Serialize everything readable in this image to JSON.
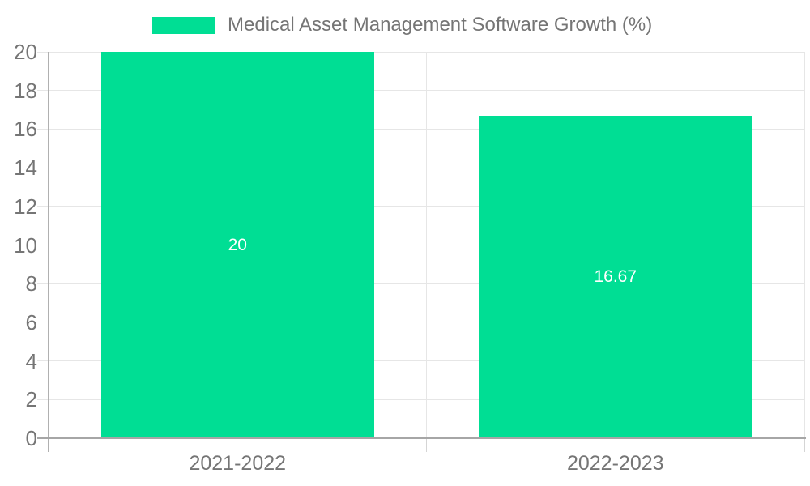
{
  "legend": {
    "label": "Medical Asset Management Software Growth (%)"
  },
  "colors": {
    "bar": "#00DE94",
    "axis_label": "#757575",
    "data_label": "#FFFFFF",
    "gridline": "#E6E6E6",
    "x_axis_line": "#A6A6A6",
    "y_axis_line": "#B0B0B0",
    "background": "#FFFFFF"
  },
  "chart_data": {
    "type": "bar",
    "title": "Medical Asset Management Software Growth (%)",
    "categories": [
      "2021-2022",
      "2022-2023"
    ],
    "series": [
      {
        "name": "Medical Asset Management Software Growth (%)",
        "values": [
          20,
          16.67
        ],
        "data_labels": [
          "20",
          "16.67"
        ],
        "color": "#00DE94"
      }
    ],
    "xlabel": "",
    "ylabel": "",
    "ylim": [
      0,
      20
    ],
    "yticks": [
      0,
      2,
      4,
      6,
      8,
      10,
      12,
      14,
      16,
      18,
      20
    ],
    "grid": true,
    "legend_position": "top",
    "data_label_position": "inside-center"
  }
}
